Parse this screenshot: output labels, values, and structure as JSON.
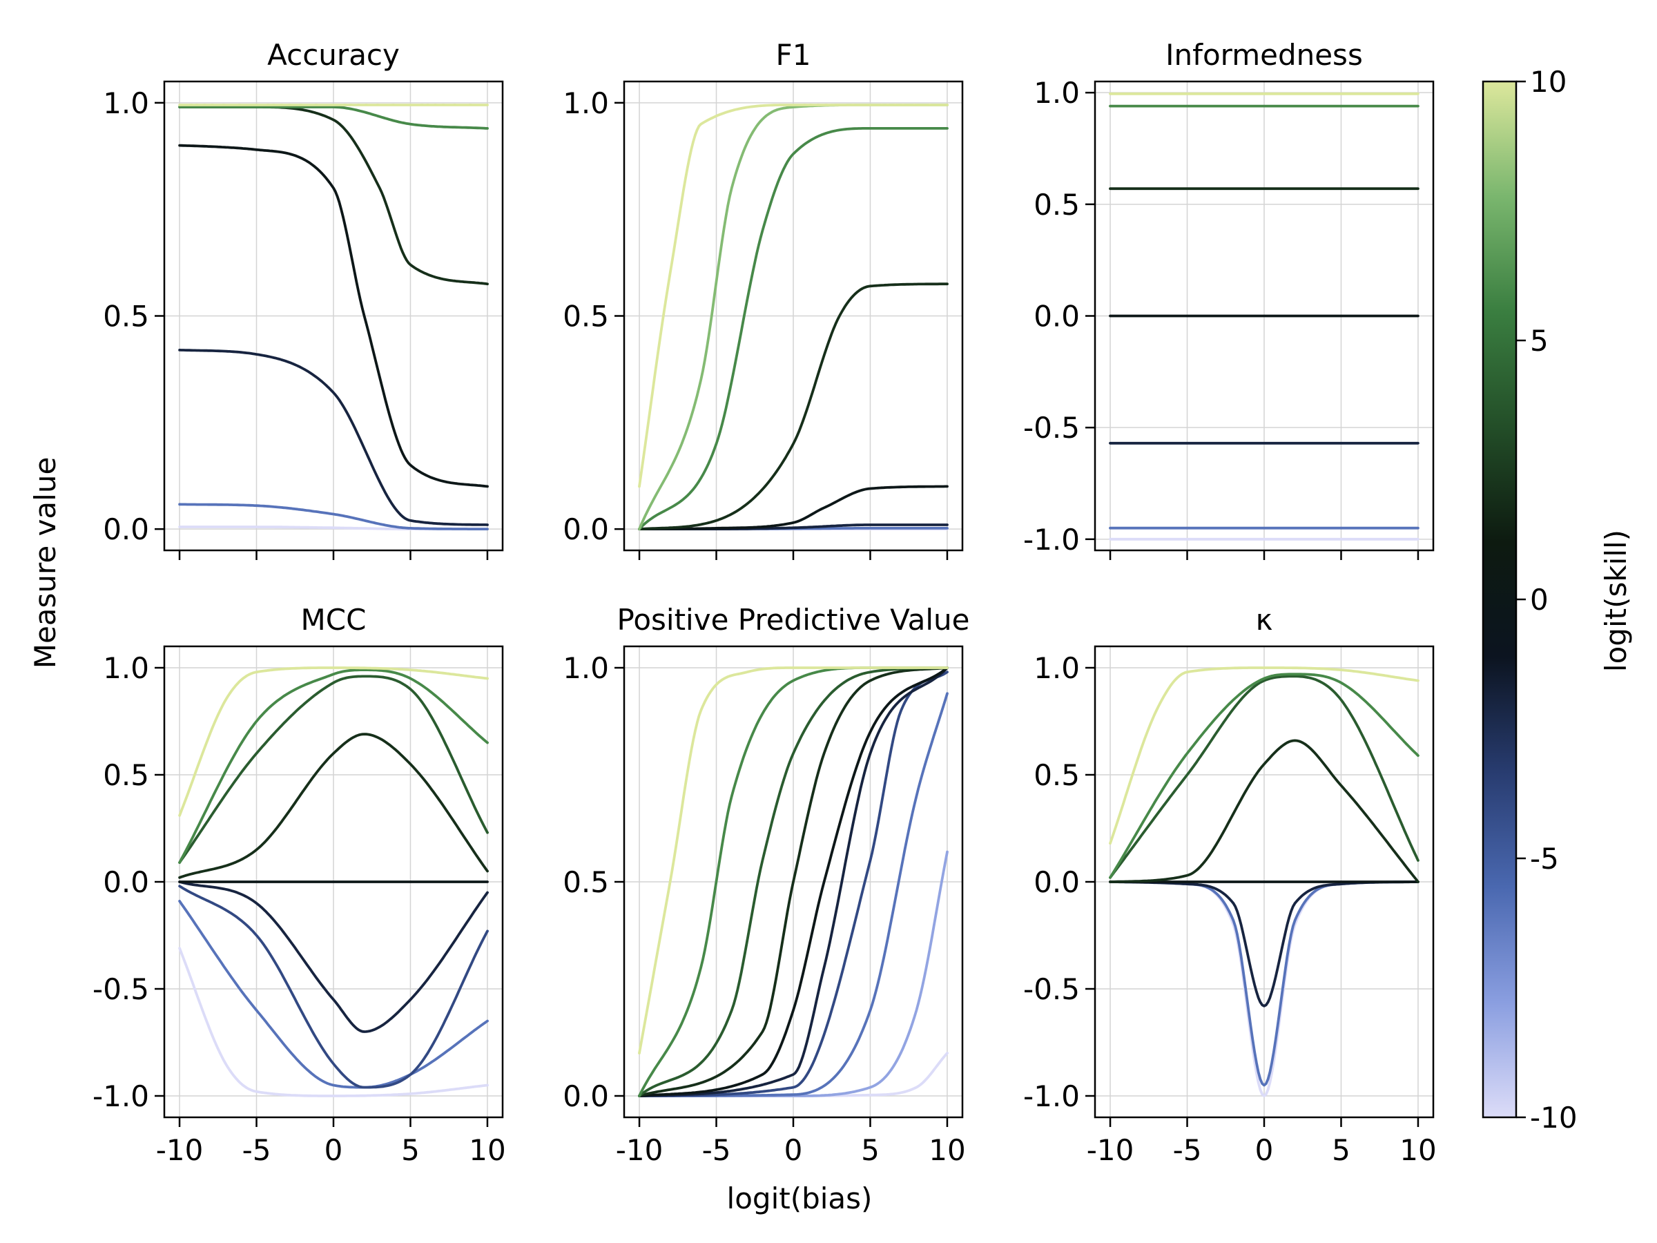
{
  "figure": {
    "ylabel": "Measure value",
    "xlabel": "logit(bias)",
    "colorbar": {
      "label": "logit(skill)",
      "range": [
        -10,
        10
      ],
      "ticks": [
        "10",
        "5",
        "0",
        "-5",
        "-10"
      ],
      "colors": [
        "#dcdcf8",
        "#8a9ee0",
        "#4a68b0",
        "#283c70",
        "#0c1420",
        "#0d1a10",
        "#234e28",
        "#3a7e40",
        "#7ab66e",
        "#dce79c"
      ]
    }
  },
  "chart_data": [
    {
      "type": "line",
      "title": "Accuracy",
      "measure": "accuracy",
      "x_range": [
        -10,
        10
      ],
      "ylim": [
        -0.05,
        1.05
      ],
      "yticks": [
        "1.0",
        "0.5",
        "0.0"
      ],
      "xticks": [
        "-10",
        "-5",
        "0",
        "5",
        "10"
      ],
      "series": [
        {
          "skill": -10,
          "x": [
            -10,
            -5,
            0,
            5,
            10
          ],
          "y": [
            0.005,
            0.005,
            0.003,
            0.0,
            0.0
          ]
        },
        {
          "skill": -6,
          "x": [
            -10,
            -5,
            0,
            5,
            10
          ],
          "y": [
            0.058,
            0.055,
            0.035,
            0.002,
            0.0
          ]
        },
        {
          "skill": -2,
          "x": [
            -10,
            -5,
            0,
            5,
            10
          ],
          "y": [
            0.42,
            0.41,
            0.32,
            0.02,
            0.01
          ]
        },
        {
          "skill": 0,
          "x": [
            -10,
            -5,
            0,
            2,
            5,
            10
          ],
          "y": [
            0.9,
            0.89,
            0.8,
            0.5,
            0.15,
            0.1
          ]
        },
        {
          "skill": 2,
          "x": [
            -10,
            -5,
            0,
            3,
            5,
            10
          ],
          "y": [
            0.99,
            0.99,
            0.96,
            0.8,
            0.62,
            0.575
          ]
        },
        {
          "skill": 6,
          "x": [
            -10,
            -5,
            0,
            5,
            10
          ],
          "y": [
            0.99,
            0.99,
            0.99,
            0.95,
            0.94
          ]
        },
        {
          "skill": 10,
          "x": [
            -10,
            -5,
            0,
            5,
            10
          ],
          "y": [
            0.995,
            0.995,
            0.995,
            0.995,
            0.995
          ]
        }
      ]
    },
    {
      "type": "line",
      "title": "F1",
      "measure": "f1",
      "x_range": [
        -10,
        10
      ],
      "ylim": [
        -0.05,
        1.05
      ],
      "yticks": [
        "1.0",
        "0.5",
        "0.0"
      ],
      "xticks": [
        "-10",
        "-5",
        "0",
        "5",
        "10"
      ],
      "series": [
        {
          "skill": -10,
          "x": [
            -10,
            -5,
            0,
            5,
            10
          ],
          "y": [
            0.0,
            0.0,
            0.0,
            0.0,
            0.0
          ]
        },
        {
          "skill": -6,
          "x": [
            -10,
            -5,
            0,
            5,
            10
          ],
          "y": [
            0.0,
            0.0,
            0.001,
            0.002,
            0.002
          ]
        },
        {
          "skill": -2,
          "x": [
            -10,
            -5,
            0,
            5,
            10
          ],
          "y": [
            0.0,
            0.0,
            0.003,
            0.01,
            0.01
          ]
        },
        {
          "skill": 0,
          "x": [
            -10,
            -5,
            0,
            2,
            5,
            10
          ],
          "y": [
            0.0,
            0.002,
            0.015,
            0.05,
            0.095,
            0.1
          ]
        },
        {
          "skill": 2,
          "x": [
            -10,
            -5,
            0,
            3,
            5,
            10
          ],
          "y": [
            0.0,
            0.02,
            0.2,
            0.5,
            0.57,
            0.575
          ]
        },
        {
          "skill": 6,
          "x": [
            -10,
            -5,
            -2,
            0,
            5,
            10
          ],
          "y": [
            0.0,
            0.2,
            0.7,
            0.88,
            0.94,
            0.94
          ]
        },
        {
          "skill": 8,
          "x": [
            -10,
            -6,
            -4,
            0,
            5,
            10
          ],
          "y": [
            0.0,
            0.35,
            0.8,
            0.99,
            0.995,
            0.995
          ]
        },
        {
          "skill": 10,
          "x": [
            -10,
            -8,
            -6,
            0,
            5,
            10
          ],
          "y": [
            0.1,
            0.6,
            0.95,
            0.995,
            0.995,
            0.995
          ]
        }
      ]
    },
    {
      "type": "line",
      "title": "Informedness",
      "measure": "informedness",
      "x_range": [
        -10,
        10
      ],
      "ylim": [
        -1.05,
        1.05
      ],
      "yticks": [
        "1.0",
        "0.5",
        "0.0",
        "-0.5",
        "-1.0"
      ],
      "xticks": [
        "-10",
        "-5",
        "0",
        "5",
        "10"
      ],
      "series": [
        {
          "skill": -10,
          "x": [
            -10,
            10
          ],
          "y": [
            -1.0,
            -1.0
          ]
        },
        {
          "skill": -6,
          "x": [
            -10,
            10
          ],
          "y": [
            -0.95,
            -0.95
          ]
        },
        {
          "skill": -2,
          "x": [
            -10,
            10
          ],
          "y": [
            -0.57,
            -0.57
          ]
        },
        {
          "skill": 0,
          "x": [
            -10,
            10
          ],
          "y": [
            0.0,
            0.0
          ]
        },
        {
          "skill": 2,
          "x": [
            -10,
            10
          ],
          "y": [
            0.57,
            0.57
          ]
        },
        {
          "skill": 6,
          "x": [
            -10,
            10
          ],
          "y": [
            0.94,
            0.94
          ]
        },
        {
          "skill": 10,
          "x": [
            -10,
            10
          ],
          "y": [
            0.995,
            0.995
          ]
        }
      ]
    },
    {
      "type": "line",
      "title": "MCC",
      "measure": "mcc",
      "x_range": [
        -10,
        10
      ],
      "ylim": [
        -1.1,
        1.1
      ],
      "yticks": [
        "1.0",
        "0.5",
        "0.0",
        "-0.5",
        "-1.0"
      ],
      "xticks": [
        "-10",
        "-5",
        "0",
        "5",
        "10"
      ],
      "series": [
        {
          "skill": -10,
          "x": [
            -10,
            -7,
            -5,
            0,
            5,
            10
          ],
          "y": [
            -0.31,
            -0.85,
            -0.98,
            -1.0,
            -0.99,
            -0.95
          ]
        },
        {
          "skill": -6,
          "x": [
            -10,
            -5,
            0,
            2,
            5,
            10
          ],
          "y": [
            -0.09,
            -0.6,
            -0.95,
            -0.96,
            -0.9,
            -0.65
          ]
        },
        {
          "skill": -4,
          "x": [
            -10,
            -5,
            0,
            2,
            5,
            10
          ],
          "y": [
            -0.02,
            -0.25,
            -0.85,
            -0.96,
            -0.9,
            -0.23
          ]
        },
        {
          "skill": -2,
          "x": [
            -10,
            -5,
            0,
            2,
            5,
            10
          ],
          "y": [
            0.0,
            -0.1,
            -0.55,
            -0.7,
            -0.55,
            -0.05
          ]
        },
        {
          "skill": 0,
          "x": [
            -10,
            10
          ],
          "y": [
            0.0,
            0.0
          ]
        },
        {
          "skill": 2,
          "x": [
            -10,
            -5,
            0,
            2,
            5,
            10
          ],
          "y": [
            0.02,
            0.15,
            0.6,
            0.69,
            0.55,
            0.05
          ]
        },
        {
          "skill": 4,
          "x": [
            -10,
            -5,
            0,
            2,
            5,
            10
          ],
          "y": [
            0.09,
            0.6,
            0.93,
            0.96,
            0.9,
            0.23
          ]
        },
        {
          "skill": 6,
          "x": [
            -10,
            -5,
            0,
            2,
            5,
            10
          ],
          "y": [
            0.09,
            0.75,
            0.97,
            0.99,
            0.95,
            0.65
          ]
        },
        {
          "skill": 10,
          "x": [
            -10,
            -7,
            -5,
            0,
            5,
            10
          ],
          "y": [
            0.31,
            0.85,
            0.98,
            1.0,
            0.99,
            0.95
          ]
        }
      ]
    },
    {
      "type": "line",
      "title": "Positive Predictive Value",
      "measure": "ppv",
      "x_range": [
        -10,
        10
      ],
      "ylim": [
        -0.05,
        1.05
      ],
      "yticks": [
        "1.0",
        "0.5",
        "0.0"
      ],
      "xticks": [
        "-10",
        "-5",
        "0",
        "5",
        "10"
      ],
      "series": [
        {
          "skill": -10,
          "x": [
            -10,
            0,
            5,
            8,
            10
          ],
          "y": [
            0.0,
            0.0,
            0.002,
            0.02,
            0.1
          ]
        },
        {
          "skill": -8,
          "x": [
            -10,
            0,
            5,
            8,
            10
          ],
          "y": [
            0.0,
            0.0,
            0.02,
            0.2,
            0.57
          ]
        },
        {
          "skill": -6,
          "x": [
            -10,
            0,
            5,
            8,
            10
          ],
          "y": [
            0.0,
            0.003,
            0.2,
            0.7,
            0.94
          ]
        },
        {
          "skill": -4,
          "x": [
            -10,
            0,
            5,
            7,
            10
          ],
          "y": [
            0.0,
            0.02,
            0.55,
            0.9,
            0.99
          ]
        },
        {
          "skill": -2,
          "x": [
            -10,
            0,
            2,
            5,
            10
          ],
          "y": [
            0.0,
            0.05,
            0.3,
            0.8,
            1.0
          ]
        },
        {
          "skill": 0,
          "x": [
            -10,
            -2,
            0,
            2,
            5,
            10
          ],
          "y": [
            0.0,
            0.05,
            0.2,
            0.5,
            0.85,
            1.0
          ]
        },
        {
          "skill": 2,
          "x": [
            -10,
            -2,
            0,
            2,
            5,
            10
          ],
          "y": [
            0.0,
            0.15,
            0.5,
            0.8,
            0.97,
            1.0
          ]
        },
        {
          "skill": 4,
          "x": [
            -10,
            -4,
            -2,
            0,
            5,
            10
          ],
          "y": [
            0.0,
            0.2,
            0.55,
            0.8,
            0.99,
            1.0
          ]
        },
        {
          "skill": 6,
          "x": [
            -10,
            -6,
            -4,
            0,
            5,
            10
          ],
          "y": [
            0.0,
            0.3,
            0.7,
            0.97,
            1.0,
            1.0
          ]
        },
        {
          "skill": 10,
          "x": [
            -10,
            -8,
            -6,
            -3,
            0,
            10
          ],
          "y": [
            0.1,
            0.5,
            0.9,
            0.99,
            1.0,
            1.0
          ]
        }
      ]
    },
    {
      "type": "line",
      "title": "κ",
      "measure": "kappa",
      "x_range": [
        -10,
        10
      ],
      "ylim": [
        -1.1,
        1.1
      ],
      "yticks": [
        "1.0",
        "0.5",
        "0.0",
        "-0.5",
        "-1.0"
      ],
      "xticks": [
        "-10",
        "-5",
        "0",
        "5",
        "10"
      ],
      "series": [
        {
          "skill": -10,
          "x": [
            -10,
            -5,
            -2,
            0,
            2,
            5,
            10
          ],
          "y": [
            0.0,
            -0.01,
            -0.2,
            -1.0,
            -0.2,
            -0.01,
            0.0
          ]
        },
        {
          "skill": -6,
          "x": [
            -10,
            -5,
            -2,
            0,
            2,
            5,
            10
          ],
          "y": [
            0.0,
            -0.01,
            -0.18,
            -0.95,
            -0.18,
            -0.01,
            0.0
          ]
        },
        {
          "skill": -2,
          "x": [
            -10,
            -5,
            -2,
            0,
            2,
            5,
            10
          ],
          "y": [
            0.0,
            -0.01,
            -0.1,
            -0.58,
            -0.1,
            -0.01,
            0.0
          ]
        },
        {
          "skill": 0,
          "x": [
            -10,
            10
          ],
          "y": [
            0.0,
            0.0
          ]
        },
        {
          "skill": 2,
          "x": [
            -10,
            -5,
            0,
            2,
            5,
            10
          ],
          "y": [
            0.0,
            0.03,
            0.55,
            0.66,
            0.45,
            0.0
          ]
        },
        {
          "skill": 4,
          "x": [
            -10,
            -5,
            0,
            2,
            5,
            10
          ],
          "y": [
            0.02,
            0.5,
            0.94,
            0.96,
            0.85,
            0.1
          ]
        },
        {
          "skill": 6,
          "x": [
            -10,
            -5,
            0,
            2,
            5,
            10
          ],
          "y": [
            0.02,
            0.6,
            0.95,
            0.97,
            0.93,
            0.59
          ]
        },
        {
          "skill": 10,
          "x": [
            -10,
            -7,
            -5,
            0,
            5,
            10
          ],
          "y": [
            0.18,
            0.8,
            0.98,
            1.0,
            0.99,
            0.94
          ]
        }
      ]
    }
  ]
}
